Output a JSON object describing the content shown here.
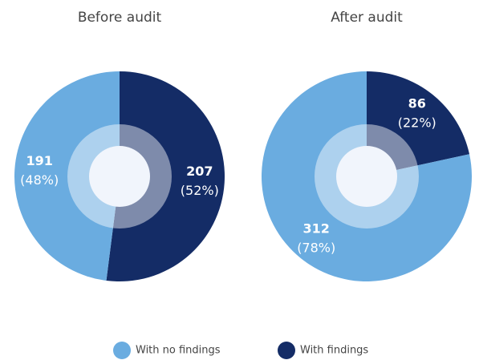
{
  "chart_data": [
    {
      "type": "pie",
      "title": "Before audit",
      "categories": [
        "With no findings",
        "With findings"
      ],
      "values": [
        191,
        207
      ],
      "percent_labels": [
        "(48%)",
        "(52%)"
      ],
      "colors": [
        "#6aace0",
        "#142c66"
      ]
    },
    {
      "type": "pie",
      "title": "After audit",
      "categories": [
        "With no findings",
        "With findings"
      ],
      "values": [
        312,
        86
      ],
      "percent_labels": [
        "(78%)",
        "(22%)"
      ],
      "colors": [
        "#6aace0",
        "#142c66"
      ]
    }
  ]
}
